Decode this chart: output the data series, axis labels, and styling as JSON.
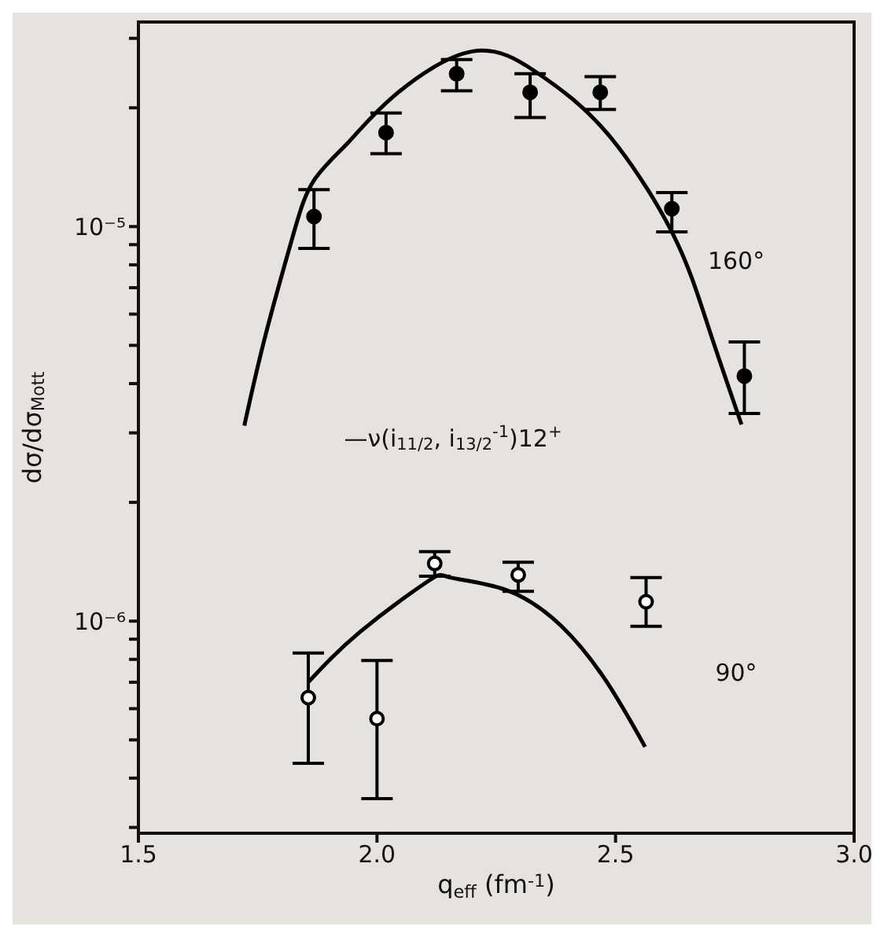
{
  "chart_data": {
    "type": "scatter",
    "xlabel": "q$_{eff}$ (fm$^{-1}$)",
    "ylabel": "dσ/dσ$_{Mott}$",
    "log": "y",
    "xlim": [
      1.5,
      3.0
    ],
    "xticks": [
      1.5,
      {
        "value": 2.0,
        "label": "2.0"
      },
      2.5,
      {
        "value": 3.0,
        "label": "3.0"
      }
    ],
    "ylim": [
      2.9e-07,
      3.3e-05
    ],
    "yticks": [
      {
        "value": 3e-07,
        "label": null
      },
      {
        "value": 4e-07,
        "label": null
      },
      {
        "value": 5e-07,
        "label": null
      },
      {
        "value": 6e-07,
        "label": null
      },
      {
        "value": 7e-07,
        "label": null
      },
      {
        "value": 8e-07,
        "label": null
      },
      {
        "value": 9e-07,
        "label": null
      },
      {
        "value": 1e-06,
        "label": "10⁻⁶"
      },
      {
        "value": 2e-06,
        "label": null
      },
      {
        "value": 3e-06,
        "label": null
      },
      {
        "value": 4e-06,
        "label": null
      },
      {
        "value": 5e-06,
        "label": null
      },
      {
        "value": 6e-06,
        "label": null
      },
      {
        "value": 7e-06,
        "label": null
      },
      {
        "value": 8e-06,
        "label": null
      },
      {
        "value": 9e-06,
        "label": null
      },
      {
        "value": 1e-05,
        "label": "10⁻⁵"
      },
      {
        "value": 2e-05,
        "label": null
      },
      {
        "value": 3e-05,
        "label": null
      }
    ],
    "annotations": [
      "160°",
      "90°",
      "—ν(i$_{11/2}$, i$_{13/2}$$^{-1}$)12$^{+}$"
    ],
    "series": [
      {
        "marker": "circle",
        "color": "#000000",
        "x": [
          1.868,
          2.019,
          2.167,
          2.321,
          2.468,
          2.618,
          2.77
        ],
        "values": [
          1.06e-05,
          1.73e-05,
          2.44e-05,
          2.19e-05,
          2.19e-05,
          1.11e-05,
          4.18e-06
        ],
        "errors": [
          [
            8.8e-06,
            1.24e-05
          ],
          [
            1.53e-05,
            1.94e-05
          ],
          [
            2.21e-05,
            2.65e-05
          ],
          [
            1.89e-05,
            2.44e-05
          ],
          [
            1.98e-05,
            2.4e-05
          ],
          [
            9.7e-06,
            1.22e-05
          ],
          [
            3.36e-06,
            5.1e-06
          ]
        ]
      },
      {
        "marker": "open_circle",
        "color": "#000000",
        "x": [
          1.856,
          2.0,
          2.121,
          2.296,
          2.564
        ],
        "values": [
          6.4e-07,
          5.66e-07,
          1.4e-06,
          1.31e-06,
          1.12e-06
        ],
        "errors": [
          [
            4.36e-07,
            8.3e-07
          ],
          [
            3.55e-07,
            7.95e-07
          ],
          [
            1.3e-06,
            1.5e-06
          ],
          [
            1.19e-06,
            1.41e-06
          ],
          [
            9.7e-07,
            1.29e-06
          ]
        ]
      },
      {
        "type": "line",
        "marker": "none",
        "color": "#000000",
        "x": [
          1.722,
          1.765,
          1.823,
          1.868,
          1.941,
          2.035,
          2.2,
          2.33,
          2.411,
          2.506,
          2.623,
          2.694,
          2.764
        ],
        "values": [
          3.13e-06,
          5.23e-06,
          9.4e-06,
          1.31e-05,
          1.64e-05,
          2.14e-05,
          2.78e-05,
          2.48e-05,
          2.1e-05,
          1.59e-05,
          9.43e-06,
          5.59e-06,
          3.15e-06
        ]
      },
      {
        "type": "line",
        "marker": "none",
        "color": "#000000",
        "x": [
          1.856,
          1.965,
          2.106,
          2.153,
          2.27,
          2.387,
          2.482,
          2.562
        ],
        "values": [
          7e-07,
          9.4e-07,
          1.26e-06,
          1.29e-06,
          1.2e-06,
          9.7e-07,
          7e-07,
          4.8e-07
        ]
      }
    ]
  }
}
